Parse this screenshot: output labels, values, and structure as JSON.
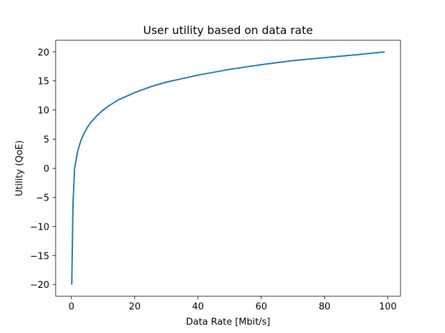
{
  "chart_data": {
    "type": "line",
    "title": "User utility based on data rate",
    "xlabel": "Data Rate [Mbit/s]",
    "ylabel": "Utility (QoE)",
    "xlim": [
      -5,
      104
    ],
    "ylim": [
      -22,
      22
    ],
    "xticks": [
      0,
      20,
      40,
      60,
      80,
      100
    ],
    "yticks": [
      -20,
      -15,
      -10,
      -5,
      0,
      5,
      10,
      15,
      20
    ],
    "xtick_labels": [
      "0",
      "20",
      "40",
      "60",
      "80",
      "100"
    ],
    "ytick_labels": [
      "−20",
      "−15",
      "−10",
      "−5",
      "0",
      "5",
      "10",
      "15",
      "20"
    ],
    "grid": false,
    "colors": {
      "line": "#1f77b4"
    },
    "series": [
      {
        "x": [
          0.1,
          0.5,
          1,
          2,
          3,
          4,
          5,
          6,
          8,
          10,
          12,
          15,
          20,
          25,
          30,
          40,
          50,
          60,
          70,
          80,
          90,
          99
        ],
        "y": [
          -20,
          -6.0,
          0,
          3.0,
          4.8,
          6.0,
          7.0,
          7.8,
          9.0,
          10.0,
          10.8,
          11.8,
          13.0,
          14.0,
          14.8,
          16.0,
          17.0,
          17.8,
          18.5,
          19.0,
          19.5,
          20.0
        ]
      }
    ]
  }
}
